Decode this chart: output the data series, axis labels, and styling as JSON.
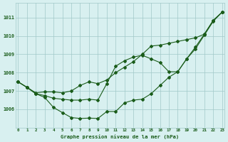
{
  "x": [
    0,
    1,
    2,
    3,
    4,
    5,
    6,
    7,
    8,
    9,
    10,
    11,
    12,
    13,
    14,
    15,
    16,
    17,
    18,
    19,
    20,
    21,
    22,
    23
  ],
  "line_upper": [
    1007.5,
    1007.2,
    1006.9,
    1006.95,
    1006.95,
    1006.9,
    1007.0,
    1007.3,
    1007.5,
    1007.4,
    1007.6,
    1008.0,
    1008.3,
    1008.6,
    1009.0,
    1009.45,
    1009.5,
    1009.6,
    1009.7,
    1009.8,
    1009.9,
    1010.1,
    1010.85,
    1011.3
  ],
  "line_mid": [
    1007.5,
    1007.2,
    1006.85,
    1006.75,
    1006.6,
    1006.55,
    1006.5,
    1006.5,
    1006.55,
    1006.5,
    1007.4,
    1008.35,
    1008.65,
    1008.85,
    1008.95,
    1008.75,
    1008.55,
    1008.05,
    1008.05,
    1008.75,
    1009.3,
    1010.05,
    1010.8,
    1011.3
  ],
  "line_lower": [
    1007.5,
    1007.2,
    1006.85,
    1006.65,
    1006.1,
    1005.82,
    1005.55,
    1005.5,
    1005.52,
    1005.5,
    1005.88,
    1005.88,
    1006.35,
    1006.5,
    1006.55,
    1006.85,
    1007.3,
    1007.75,
    1008.05,
    1008.75,
    1009.4,
    1010.1,
    1010.85,
    1011.3
  ],
  "line_color": "#1a5c1a",
  "bg_color": "#d8f0f0",
  "grid_color": "#a0c8c8",
  "title": "Graphe pression niveau de la mer (hPa)",
  "yticks": [
    1006,
    1007,
    1008,
    1009,
    1010,
    1011
  ],
  "ylim": [
    1005.0,
    1011.8
  ],
  "xlim": [
    -0.3,
    23.3
  ]
}
